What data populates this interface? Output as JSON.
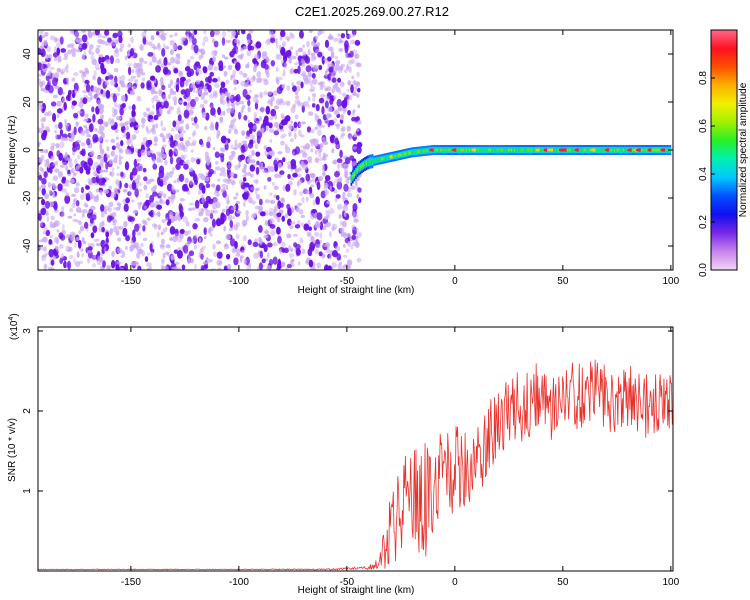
{
  "figure": {
    "title": "C2E1.2025.269.00.27.R12"
  },
  "colors": {
    "snr_line": "#e8312b",
    "scatter_dense": "#6a10e6",
    "scatter_light": "#c9a6f2",
    "colorbar_stops": [
      "#f2d5f7",
      "#c785ec",
      "#7a28e8",
      "#1010f0",
      "#0050ff",
      "#00c8ff",
      "#00f0b4",
      "#28f028",
      "#a0f000",
      "#f0f000",
      "#ffb000",
      "#ff5000",
      "#ff1020",
      "#ff6a8c"
    ]
  },
  "chart_data": [
    {
      "type": "heatmap",
      "xlabel": "Height of straight line (km)",
      "ylabel": "Frequency (Hz)",
      "xlim": [
        -193,
        101
      ],
      "ylim": [
        -50,
        50
      ],
      "xticks": [
        -150,
        -100,
        -50,
        0,
        50,
        100
      ],
      "xtick_labels": [
        "-150",
        "-100",
        "-50",
        "0",
        "50",
        "100"
      ],
      "yticks": [
        -40,
        -20,
        0,
        20,
        40
      ],
      "ytick_labels": [
        "-40",
        "-20",
        "0",
        "20",
        "40"
      ],
      "noise_region_x": [
        -193,
        -48
      ],
      "signal_track": {
        "x": [
          -48,
          -45,
          -42,
          -40,
          -35,
          -30,
          -25,
          -20,
          -15,
          -10,
          -5,
          0,
          10,
          20,
          30,
          40,
          50,
          60,
          70,
          80,
          90,
          100
        ],
        "frequency": [
          -12,
          -8,
          -6,
          -5,
          -4,
          -3,
          -2,
          -1,
          -0.5,
          0,
          0,
          0,
          0,
          0,
          0,
          0,
          0,
          0,
          0,
          0,
          0,
          0
        ]
      },
      "colorbar": {
        "label": "Normalized spectral amplitude",
        "range": [
          0.0,
          1.0
        ],
        "ticks": [
          0.0,
          0.2,
          0.4,
          0.6,
          0.8
        ],
        "tick_labels": [
          "0.0",
          "0.2",
          "0.4",
          "0.6",
          "0.8"
        ]
      },
      "grid": false
    },
    {
      "type": "line",
      "xlabel": "Height of straight line (km)",
      "ylabel": "SNR (10 * v/v)",
      "y_multiplier_label": "(x10",
      "y_multiplier_exp": "4",
      "y_multiplier_close": ")",
      "xlim": [
        -193,
        101
      ],
      "ylim": [
        0,
        3.05
      ],
      "xticks": [
        -150,
        -100,
        -50,
        0,
        50,
        100
      ],
      "xtick_labels": [
        "-150",
        "-100",
        "-50",
        "0",
        "50",
        "100"
      ],
      "yticks": [
        1,
        2,
        3
      ],
      "ytick_labels": [
        "1",
        "2",
        "3"
      ],
      "series": [
        {
          "x": [
            -193,
            -150,
            -100,
            -60,
            -40,
            -35,
            -30,
            -25,
            -20,
            -15,
            -10,
            -5,
            0,
            5,
            10,
            15,
            20,
            25,
            30,
            35,
            40,
            45,
            50,
            55,
            60,
            65,
            70,
            75,
            80,
            85,
            90,
            95,
            100
          ],
          "values": [
            0.02,
            0.02,
            0.02,
            0.02,
            0.04,
            0.1,
            0.5,
            0.8,
            0.9,
            0.85,
            1.05,
            1.15,
            1.3,
            1.25,
            1.45,
            1.6,
            1.85,
            1.95,
            2.05,
            2.1,
            2.15,
            2.05,
            2.2,
            2.15,
            2.2,
            2.3,
            2.15,
            2.1,
            2.2,
            2.1,
            2.05,
            2.15,
            2.1
          ],
          "noise_amplitude": [
            0.005,
            0.005,
            0.005,
            0.008,
            0.02,
            0.08,
            0.5,
            0.6,
            0.7,
            0.75,
            0.7,
            0.55,
            0.55,
            0.5,
            0.5,
            0.5,
            0.45,
            0.5,
            0.5,
            0.5,
            0.45,
            0.45,
            0.45,
            0.45,
            0.4,
            0.45,
            0.4,
            0.4,
            0.4,
            0.4,
            0.4,
            0.4,
            0.35
          ]
        }
      ],
      "grid": false
    }
  ]
}
